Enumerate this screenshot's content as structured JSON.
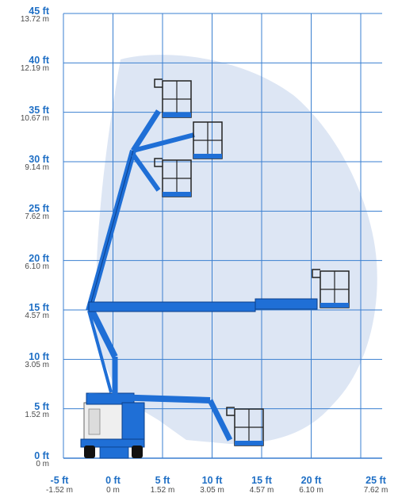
{
  "chart_data": {
    "type": "diagram",
    "y_axis": [
      {
        "ft": "45 ft",
        "m": "13.72 m"
      },
      {
        "ft": "40 ft",
        "m": "12.19 m"
      },
      {
        "ft": "35 ft",
        "m": "10.67 m"
      },
      {
        "ft": "30 ft",
        "m": "9.14 m"
      },
      {
        "ft": "25 ft",
        "m": "7.62 m"
      },
      {
        "ft": "20 ft",
        "m": "6.10 m"
      },
      {
        "ft": "15 ft",
        "m": "4.57 m"
      },
      {
        "ft": "10 ft",
        "m": "3.05 m"
      },
      {
        "ft": "5 ft",
        "m": "1.52 m"
      },
      {
        "ft": "0 ft",
        "m": "0 m"
      }
    ],
    "x_axis": [
      {
        "ft": "-5 ft",
        "m": "-1.52 m"
      },
      {
        "ft": "0 ft",
        "m": "0 m"
      },
      {
        "ft": "5 ft",
        "m": "1.52 m"
      },
      {
        "ft": "10 ft",
        "m": "3.05 m"
      },
      {
        "ft": "15 ft",
        "m": "4.57 m"
      },
      {
        "ft": "20 ft",
        "m": "6.10 m"
      },
      {
        "ft": "25 ft",
        "m": "7.62 m"
      }
    ],
    "x_range_ft": [
      -5,
      25
    ],
    "y_range_ft": [
      0,
      45
    ],
    "grid": true,
    "colors": {
      "grid": "#3a7fd0",
      "envelope": "#dde6f4",
      "boom": "#1f6fd6",
      "boom_outline": "#0b3f8a",
      "platform": "#1f6fd6",
      "chassis": "#eeeeee"
    }
  }
}
